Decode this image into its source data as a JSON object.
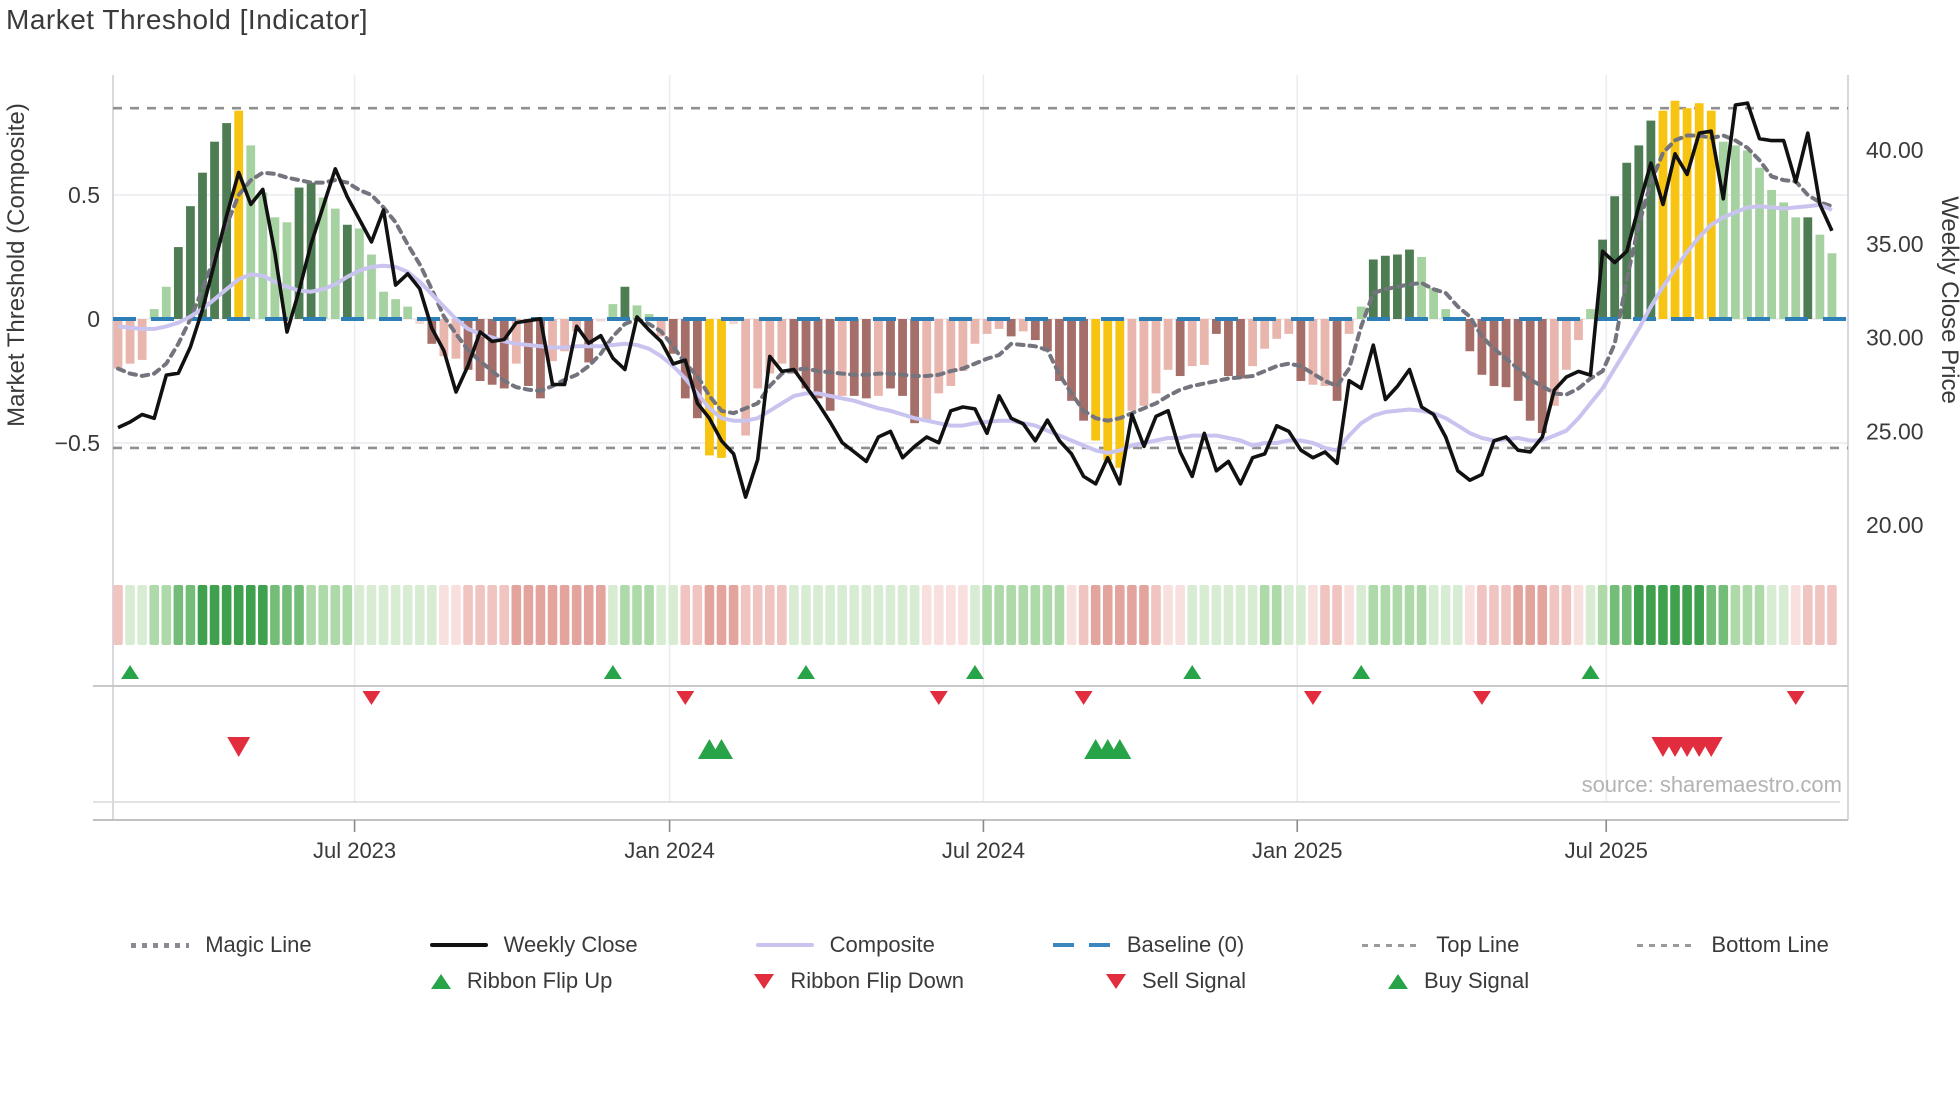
{
  "title": "Market Threshold [Indicator]",
  "source_text": "source: sharemaestro.com",
  "axes": {
    "left": {
      "label": "Market Threshold (Composite)",
      "ticks": [
        "0.5",
        "0",
        "−0.5"
      ],
      "tick_values": [
        0.5,
        0,
        -0.5
      ]
    },
    "right": {
      "label": "Weekly Close Price",
      "ticks": [
        "40.00",
        "35.00",
        "30.00",
        "25.00",
        "20.00"
      ],
      "tick_values": [
        40,
        35,
        30,
        25,
        20
      ]
    },
    "x": {
      "ticks": [
        "Jul 2023",
        "Jan 2024",
        "Jul 2024",
        "Jan 2025",
        "Jul 2025"
      ],
      "tick_week_index": [
        19.6,
        45.7,
        71.7,
        97.7,
        123.3
      ]
    }
  },
  "chart_data": {
    "type": "bar",
    "subtype": "combo: threshold bars + two composite lines (left axis) + weekly close price line (right axis) + momentum ribbon heatmap + signal markers",
    "title": "Market Threshold [Indicator]",
    "x_unit": "weekly, approx. Feb 2023 to Nov 2025 (143 weekly points)",
    "num_points": 143,
    "ylim_left": [
      -0.95,
      0.98
    ],
    "ylim_right": [
      18,
      44
    ],
    "grid": "horizontal light gridlines at 0.5, 0, -0.5; faint vertical gridlines at month ticks",
    "legend_position": "below chart, two centered rows",
    "reference_lines": {
      "baseline": 0,
      "top_line": 0.85,
      "bottom_line": -0.52
    },
    "series": [
      {
        "name": "Threshold Bars",
        "type": "bar",
        "axis": "left",
        "values": [
          -0.2,
          -0.18,
          -0.165,
          0.04,
          0.13,
          0.29,
          0.455,
          0.59,
          0.715,
          0.79,
          0.84,
          0.7,
          0.51,
          0.41,
          0.39,
          0.53,
          0.55,
          0.49,
          0.445,
          0.38,
          0.365,
          0.26,
          0.11,
          0.08,
          0.05,
          -0.02,
          -0.1,
          -0.15,
          -0.16,
          -0.205,
          -0.25,
          -0.265,
          -0.28,
          -0.18,
          -0.27,
          -0.32,
          -0.17,
          -0.13,
          -0.05,
          -0.175,
          -0.01,
          0.06,
          0.13,
          0.055,
          0.02,
          -0.07,
          -0.14,
          -0.32,
          -0.4,
          -0.55,
          -0.56,
          -0.02,
          -0.47,
          -0.28,
          -0.22,
          -0.18,
          -0.22,
          -0.28,
          -0.32,
          -0.37,
          -0.31,
          -0.31,
          -0.32,
          -0.31,
          -0.28,
          -0.31,
          -0.42,
          -0.41,
          -0.3,
          -0.27,
          -0.21,
          -0.1,
          -0.06,
          -0.04,
          -0.07,
          -0.05,
          -0.085,
          -0.13,
          -0.25,
          -0.33,
          -0.41,
          -0.49,
          -0.57,
          -0.6,
          -0.37,
          -0.35,
          -0.3,
          -0.205,
          -0.23,
          -0.19,
          -0.185,
          -0.06,
          -0.23,
          -0.24,
          -0.19,
          -0.12,
          -0.08,
          -0.06,
          -0.25,
          -0.265,
          -0.27,
          -0.33,
          -0.06,
          0.05,
          0.24,
          0.255,
          0.26,
          0.28,
          0.25,
          0.125,
          0.04,
          0.0,
          -0.13,
          -0.225,
          -0.27,
          -0.275,
          -0.33,
          -0.41,
          -0.46,
          -0.35,
          -0.205,
          -0.085,
          0.04,
          0.32,
          0.495,
          0.63,
          0.7,
          0.8,
          0.84,
          0.88,
          0.85,
          0.87,
          0.84,
          0.715,
          0.7,
          0.68,
          0.61,
          0.52,
          0.47,
          0.41,
          0.41,
          0.34,
          0.265
        ],
        "bar_colors": [
          "P",
          "P",
          "P",
          "g",
          "g",
          "G",
          "G",
          "G",
          "G",
          "G",
          "Y",
          "g",
          "g",
          "g",
          "g",
          "G",
          "G",
          "g",
          "g",
          "G",
          "g",
          "g",
          "g",
          "g",
          "g",
          "pp",
          "R",
          "P",
          "P",
          "R",
          "R",
          "R",
          "R",
          "P",
          "R",
          "R",
          "P",
          "P",
          "P",
          "R",
          "pp",
          "g",
          "G",
          "g",
          "g",
          "P",
          "R",
          "R",
          "R",
          "Y",
          "Y",
          "pp",
          "P",
          "P",
          "P",
          "P",
          "R",
          "R",
          "R",
          "R",
          "P",
          "R",
          "R",
          "P",
          "R",
          "R",
          "R",
          "P",
          "P",
          "P",
          "P",
          "P",
          "P",
          "P",
          "R",
          "P",
          "R",
          "R",
          "R",
          "R",
          "R",
          "Y",
          "Y",
          "Y",
          "P",
          "P",
          "P",
          "P",
          "R",
          "P",
          "P",
          "R",
          "R",
          "R",
          "P",
          "P",
          "P",
          "P",
          "R",
          "P",
          "P",
          "R",
          "P",
          "g",
          "G",
          "G",
          "G",
          "G",
          "g",
          "g",
          "g",
          "n",
          "R",
          "R",
          "R",
          "R",
          "R",
          "R",
          "R",
          "P",
          "P",
          "P",
          "g",
          "G",
          "G",
          "G",
          "G",
          "G",
          "Y",
          "Y",
          "Y",
          "Y",
          "Y",
          "g",
          "g",
          "g",
          "g",
          "g",
          "g",
          "g",
          "G",
          "g",
          "g"
        ]
      },
      {
        "name": "Weekly Close",
        "type": "line",
        "axis": "right",
        "color_key": "close",
        "values": [
          25.2,
          25.5,
          25.9,
          25.7,
          28.0,
          28.1,
          29.5,
          31.5,
          34.0,
          36.5,
          38.8,
          37.1,
          37.9,
          34.5,
          30.3,
          32.5,
          35.0,
          37.0,
          39.0,
          37.5,
          36.3,
          35.1,
          36.8,
          32.8,
          33.4,
          32.6,
          30.5,
          29.3,
          27.1,
          28.5,
          30.3,
          29.8,
          29.9,
          30.8,
          30.9,
          31.0,
          27.5,
          27.5,
          30.6,
          29.7,
          30.1,
          28.9,
          28.3,
          31.1,
          30.4,
          29.8,
          28.6,
          28.8,
          26.5,
          25.7,
          24.5,
          23.8,
          21.5,
          23.5,
          29.0,
          28.2,
          28.3,
          27.4,
          26.5,
          25.5,
          24.4,
          23.9,
          23.4,
          24.7,
          25.0,
          23.6,
          24.2,
          24.7,
          24.4,
          26.1,
          26.3,
          26.2,
          24.9,
          26.9,
          25.7,
          25.4,
          24.5,
          25.6,
          24.5,
          23.8,
          22.6,
          22.2,
          23.6,
          22.2,
          25.9,
          24.2,
          25.8,
          26.1,
          23.9,
          22.6,
          24.9,
          22.9,
          23.4,
          22.2,
          23.6,
          23.8,
          25.3,
          25.0,
          24.0,
          23.6,
          23.9,
          23.3,
          27.7,
          27.3,
          29.6,
          26.7,
          27.4,
          28.3,
          26.3,
          25.9,
          24.7,
          22.9,
          22.4,
          22.7,
          24.5,
          24.7,
          24.0,
          23.9,
          24.7,
          27.2,
          27.9,
          28.2,
          28.0,
          34.6,
          34.0,
          34.6,
          37.0,
          39.3,
          37.1,
          39.8,
          38.7,
          40.9,
          41.0,
          37.4,
          42.4,
          42.5,
          40.6,
          40.5,
          40.5,
          38.3,
          40.9,
          37.1,
          35.7
        ]
      },
      {
        "name": "Composite",
        "type": "line",
        "axis": "left",
        "color_key": "composite",
        "values": [
          -0.03,
          -0.035,
          -0.04,
          -0.04,
          -0.03,
          -0.015,
          0.01,
          0.04,
          0.08,
          0.12,
          0.16,
          0.18,
          0.175,
          0.15,
          0.13,
          0.115,
          0.11,
          0.12,
          0.14,
          0.17,
          0.195,
          0.21,
          0.215,
          0.21,
          0.19,
          0.15,
          0.1,
          0.05,
          0.0,
          -0.04,
          -0.06,
          -0.075,
          -0.09,
          -0.1,
          -0.105,
          -0.11,
          -0.115,
          -0.115,
          -0.11,
          -0.11,
          -0.11,
          -0.105,
          -0.1,
          -0.105,
          -0.12,
          -0.15,
          -0.19,
          -0.24,
          -0.3,
          -0.36,
          -0.4,
          -0.41,
          -0.41,
          -0.4,
          -0.37,
          -0.34,
          -0.31,
          -0.3,
          -0.3,
          -0.31,
          -0.32,
          -0.33,
          -0.345,
          -0.36,
          -0.37,
          -0.385,
          -0.4,
          -0.41,
          -0.42,
          -0.43,
          -0.43,
          -0.42,
          -0.415,
          -0.41,
          -0.41,
          -0.42,
          -0.43,
          -0.45,
          -0.47,
          -0.49,
          -0.51,
          -0.53,
          -0.54,
          -0.53,
          -0.51,
          -0.5,
          -0.49,
          -0.48,
          -0.48,
          -0.47,
          -0.47,
          -0.47,
          -0.48,
          -0.49,
          -0.51,
          -0.5,
          -0.5,
          -0.49,
          -0.49,
          -0.5,
          -0.52,
          -0.53,
          -0.47,
          -0.42,
          -0.39,
          -0.375,
          -0.37,
          -0.365,
          -0.37,
          -0.38,
          -0.4,
          -0.43,
          -0.46,
          -0.48,
          -0.49,
          -0.485,
          -0.48,
          -0.49,
          -0.49,
          -0.47,
          -0.45,
          -0.4,
          -0.34,
          -0.28,
          -0.2,
          -0.12,
          -0.04,
          0.05,
          0.13,
          0.2,
          0.27,
          0.33,
          0.38,
          0.41,
          0.43,
          0.45,
          0.455,
          0.45,
          0.445,
          0.45,
          0.455,
          0.46,
          0.44
        ]
      },
      {
        "name": "Magic Line",
        "type": "line",
        "axis": "left",
        "style": "dotted",
        "color_key": "magic",
        "values": [
          -0.2,
          -0.22,
          -0.23,
          -0.22,
          -0.18,
          -0.1,
          0.0,
          0.12,
          0.25,
          0.38,
          0.5,
          0.56,
          0.59,
          0.585,
          0.57,
          0.56,
          0.55,
          0.55,
          0.56,
          0.55,
          0.52,
          0.5,
          0.45,
          0.39,
          0.3,
          0.22,
          0.12,
          0.01,
          -0.06,
          -0.125,
          -0.17,
          -0.21,
          -0.25,
          -0.275,
          -0.285,
          -0.29,
          -0.27,
          -0.245,
          -0.225,
          -0.19,
          -0.14,
          -0.07,
          -0.02,
          0.0,
          -0.02,
          -0.05,
          -0.11,
          -0.18,
          -0.23,
          -0.31,
          -0.37,
          -0.38,
          -0.36,
          -0.34,
          -0.27,
          -0.22,
          -0.205,
          -0.2,
          -0.21,
          -0.215,
          -0.22,
          -0.225,
          -0.225,
          -0.22,
          -0.22,
          -0.225,
          -0.23,
          -0.23,
          -0.225,
          -0.21,
          -0.2,
          -0.18,
          -0.16,
          -0.145,
          -0.1,
          -0.105,
          -0.11,
          -0.125,
          -0.225,
          -0.3,
          -0.37,
          -0.4,
          -0.41,
          -0.4,
          -0.38,
          -0.36,
          -0.34,
          -0.31,
          -0.285,
          -0.27,
          -0.26,
          -0.25,
          -0.24,
          -0.235,
          -0.23,
          -0.21,
          -0.19,
          -0.18,
          -0.19,
          -0.22,
          -0.25,
          -0.27,
          -0.2,
          -0.03,
          0.105,
          0.12,
          0.13,
          0.14,
          0.145,
          0.12,
          0.105,
          0.05,
          0.01,
          -0.07,
          -0.12,
          -0.16,
          -0.2,
          -0.245,
          -0.27,
          -0.3,
          -0.305,
          -0.28,
          -0.24,
          -0.21,
          -0.1,
          0.16,
          0.38,
          0.55,
          0.67,
          0.72,
          0.74,
          0.74,
          0.73,
          0.74,
          0.72,
          0.69,
          0.64,
          0.575,
          0.56,
          0.555,
          0.5,
          0.47,
          0.455
        ]
      }
    ],
    "ribbon_colors": [
      "r2",
      "g1",
      "g1",
      "g2",
      "g2",
      "g3",
      "g3",
      "g4",
      "g4",
      "g4",
      "g4",
      "g4",
      "g4",
      "g3",
      "g3",
      "g3",
      "g2",
      "g2",
      "g2",
      "g2",
      "g1",
      "g1",
      "g1",
      "g1",
      "g1",
      "g1",
      "g1",
      "r1",
      "r1",
      "r2",
      "r2",
      "r2",
      "r2",
      "r3",
      "r3",
      "r3",
      "r3",
      "r3",
      "r3",
      "r3",
      "r3",
      "g1",
      "g2",
      "g2",
      "g2",
      "g1",
      "g1",
      "r2",
      "r2",
      "r3",
      "r3",
      "r3",
      "r2",
      "r2",
      "r2",
      "r2",
      "g1",
      "g1",
      "g1",
      "g1",
      "g1",
      "g1",
      "g1",
      "g1",
      "g1",
      "g1",
      "g1",
      "r1",
      "r1",
      "r1",
      "r1",
      "g1",
      "g2",
      "g2",
      "g2",
      "g2",
      "g2",
      "g2",
      "g2",
      "r1",
      "r2",
      "r3",
      "r3",
      "r3",
      "r3",
      "r3",
      "r2",
      "r1",
      "r1",
      "g1",
      "g1",
      "g1",
      "g1",
      "g1",
      "g1",
      "g2",
      "g2",
      "g1",
      "g1",
      "r1",
      "r2",
      "r2",
      "r1",
      "g1",
      "g2",
      "g2",
      "g2",
      "g2",
      "g2",
      "g1",
      "g1",
      "g1",
      "r1",
      "r2",
      "r2",
      "r2",
      "r3",
      "r3",
      "r3",
      "r2",
      "r2",
      "r1",
      "g1",
      "g2",
      "g3",
      "g3",
      "g4",
      "g4",
      "g4",
      "g4",
      "g4",
      "g4",
      "g3",
      "g3",
      "g2",
      "g2",
      "g2",
      "g1",
      "g1",
      "r1",
      "r2",
      "r2",
      "r2"
    ],
    "signals": {
      "ribbon_flip_up_weeks": [
        1,
        41,
        57,
        71,
        89,
        103,
        122
      ],
      "ribbon_flip_down_weeks": [
        21,
        47,
        68,
        80,
        99,
        113,
        139
      ],
      "buy_signal_weeks": [
        49,
        50,
        81,
        82,
        83
      ],
      "sell_signal_weeks": [
        10,
        128,
        129,
        130,
        131,
        132
      ]
    }
  },
  "palette": {
    "bar": {
      "G": "#4f7d53",
      "g": "#a6d2a1",
      "Y": "#f7c411",
      "R": "#a66e69",
      "P": "#e9b6ae",
      "pp": "#f2d7d2",
      "n": "none"
    },
    "ribbon": {
      "g1": "#d8ecd4",
      "g2": "#aedaaa",
      "g3": "#74bd78",
      "g4": "#3fa04d",
      "r1": "#f7e0de",
      "r2": "#f0c4c0",
      "r3": "#e3a49e"
    },
    "lines": {
      "close": "#111111",
      "composite": "#c9c3f0",
      "magic": "#74747e",
      "baseline": "#2e7fb8",
      "threshold": "#909090"
    },
    "signal": {
      "up": "#27a348",
      "down": "#e22d3e"
    },
    "text": "#3a3a3a",
    "muted_text": "#b3b3b3",
    "grid": "#ebebf0",
    "spine": "#cfcfd6"
  },
  "legend": {
    "row1": [
      {
        "label": "Magic Line",
        "marker": "dotted-gray"
      },
      {
        "label": "Weekly Close",
        "marker": "solid-black"
      },
      {
        "label": "Composite",
        "marker": "solid-purple"
      },
      {
        "label": "Baseline (0)",
        "marker": "dashed-blue"
      },
      {
        "label": "Top Line",
        "marker": "dashed-gray"
      },
      {
        "label": "Bottom Line",
        "marker": "dashed-gray"
      }
    ],
    "row2": [
      {
        "label": "Ribbon Flip Up",
        "marker": "triangle-up-green"
      },
      {
        "label": "Ribbon Flip Down",
        "marker": "triangle-down-red"
      },
      {
        "label": "Sell Signal",
        "marker": "triangle-down-red"
      },
      {
        "label": "Buy Signal",
        "marker": "triangle-up-green"
      }
    ]
  }
}
